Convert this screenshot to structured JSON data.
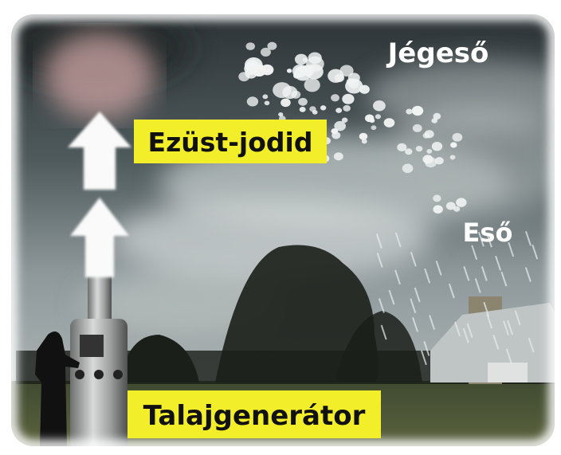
{
  "labels": {
    "hail": "Jégeső",
    "silver_iodide": "Ezüst-jodid",
    "rain": "Eső",
    "ground_generator": "Talajgenerátor"
  }
}
